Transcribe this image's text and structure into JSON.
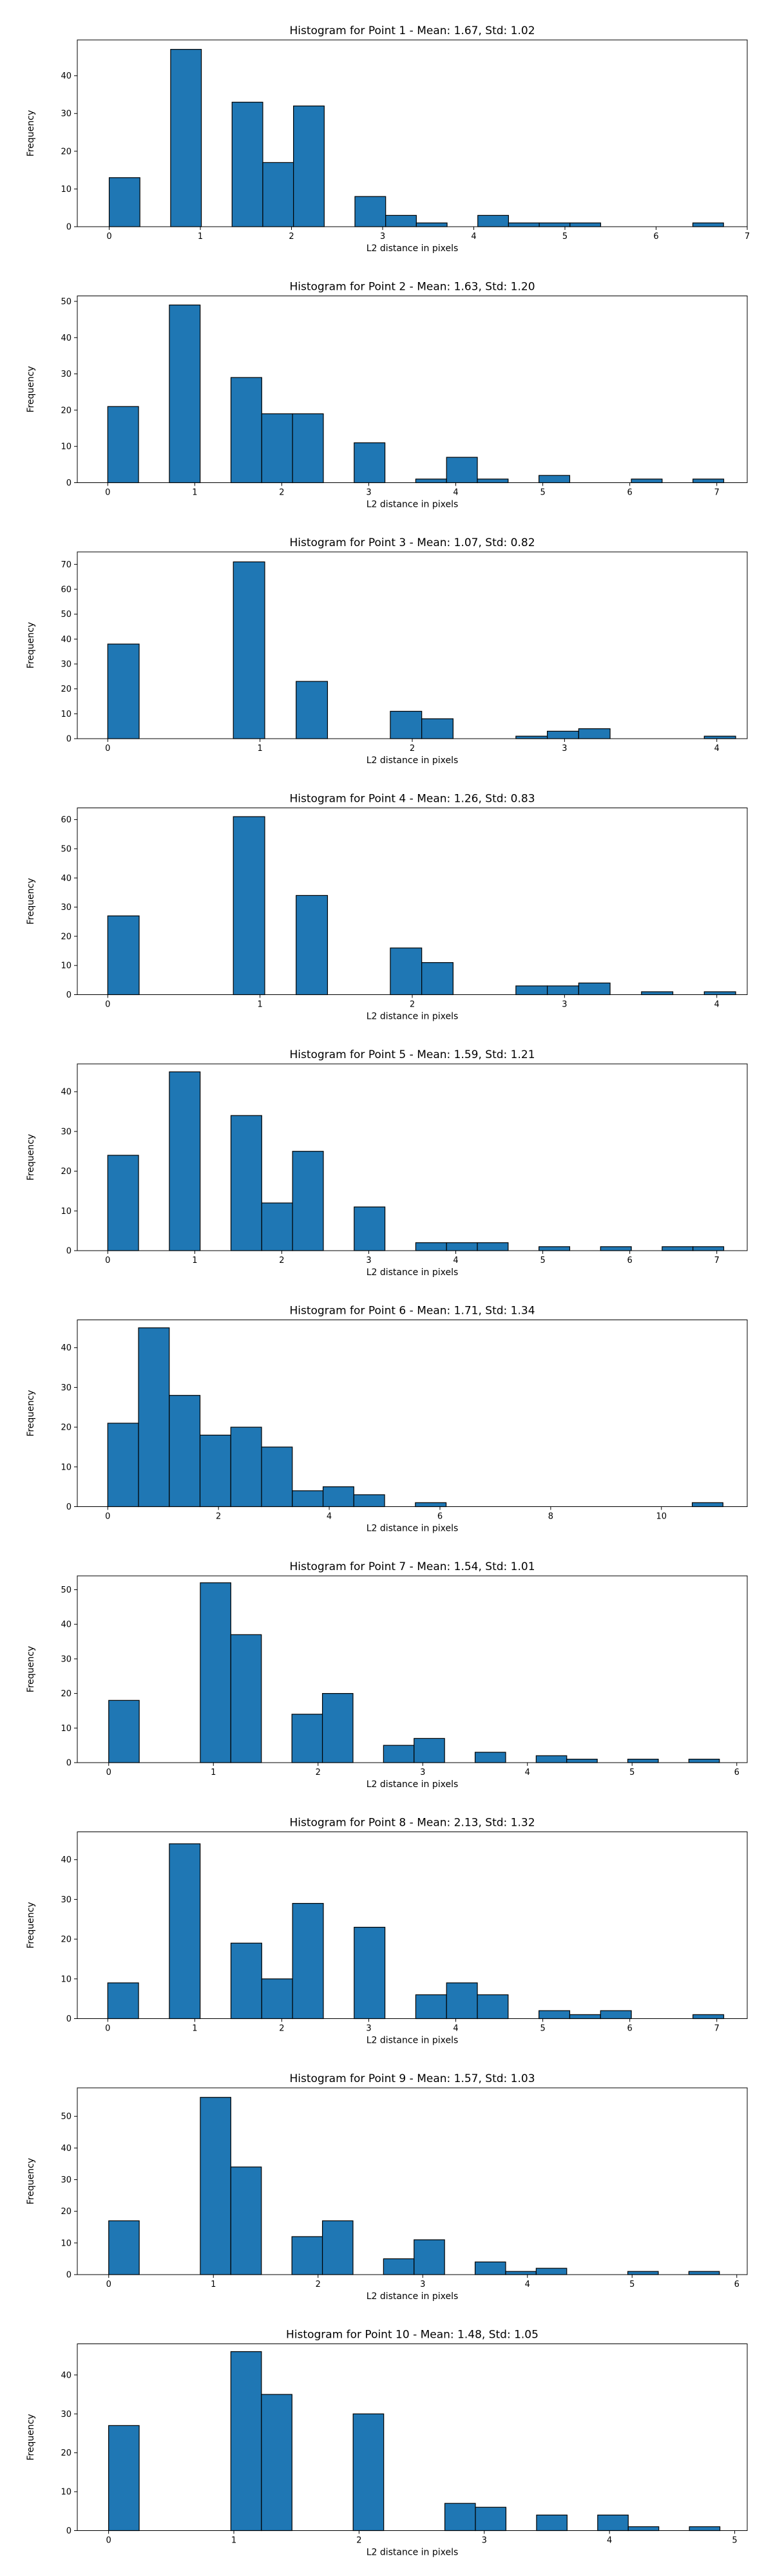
{
  "chart_data": [
    {
      "type": "bar",
      "title": "Histogram for Point 1 - Mean: 1.67, Std: 1.02",
      "xlabel": "L2 distance in pixels",
      "ylabel": "Frequency",
      "xlim": [
        -0.35,
        7.0
      ],
      "ylim": [
        0,
        49.5
      ],
      "xticks": [
        0,
        1,
        2,
        3,
        4,
        5,
        6,
        7
      ],
      "yticks": [
        0,
        10,
        20,
        30,
        40
      ],
      "bin_start": 0,
      "bin_width": 0.337,
      "values": [
        13,
        0,
        47,
        0,
        33,
        17,
        32,
        0,
        8,
        3,
        1,
        0,
        3,
        1,
        1,
        1,
        0,
        0,
        0,
        1
      ],
      "grid": false,
      "color": "#1f77b4"
    },
    {
      "type": "bar",
      "title": "Histogram for Point 2 - Mean: 1.63, Std: 1.20",
      "xlabel": "L2 distance in pixels",
      "ylabel": "Frequency",
      "xlim": [
        -0.35,
        7.35
      ],
      "ylim": [
        0,
        51.5
      ],
      "xticks": [
        0,
        1,
        2,
        3,
        4,
        5,
        6,
        7
      ],
      "yticks": [
        0,
        10,
        20,
        30,
        40,
        50
      ],
      "bin_start": 0,
      "bin_width": 0.354,
      "values": [
        21,
        0,
        49,
        0,
        29,
        19,
        19,
        0,
        11,
        0,
        1,
        7,
        1,
        0,
        2,
        0,
        0,
        1,
        0,
        1
      ],
      "grid": false,
      "color": "#1f77b4"
    },
    {
      "type": "bar",
      "title": "Histogram for Point 3 - Mean: 1.07, Std: 0.82",
      "xlabel": "L2 distance in pixels",
      "ylabel": "Frequency",
      "xlim": [
        -0.2,
        4.2
      ],
      "ylim": [
        0,
        75
      ],
      "xticks": [
        0,
        1,
        2,
        3,
        4
      ],
      "yticks": [
        0,
        10,
        20,
        30,
        40,
        50,
        60,
        70
      ],
      "bin_start": 0,
      "bin_width": 0.2062,
      "values": [
        38,
        0,
        0,
        0,
        71,
        0,
        23,
        0,
        0,
        11,
        8,
        0,
        0,
        1,
        3,
        4,
        0,
        0,
        0,
        1
      ],
      "grid": false,
      "color": "#1f77b4"
    },
    {
      "type": "bar",
      "title": "Histogram for Point 4 - Mean: 1.26, Std: 0.83",
      "xlabel": "L2 distance in pixels",
      "ylabel": "Frequency",
      "xlim": [
        -0.2,
        4.2
      ],
      "ylim": [
        0,
        64
      ],
      "xticks": [
        0,
        1,
        2,
        3,
        4
      ],
      "yticks": [
        0,
        10,
        20,
        30,
        40,
        50,
        60
      ],
      "bin_start": 0,
      "bin_width": 0.2062,
      "values": [
        27,
        0,
        0,
        0,
        61,
        0,
        34,
        0,
        0,
        16,
        11,
        0,
        0,
        3,
        3,
        4,
        0,
        1,
        0,
        1
      ],
      "grid": false,
      "color": "#1f77b4"
    },
    {
      "type": "bar",
      "title": "Histogram for Point 5 - Mean: 1.59, Std: 1.21",
      "xlabel": "L2 distance in pixels",
      "ylabel": "Frequency",
      "xlim": [
        -0.35,
        7.35
      ],
      "ylim": [
        0,
        47
      ],
      "xticks": [
        0,
        1,
        2,
        3,
        4,
        5,
        6,
        7
      ],
      "yticks": [
        0,
        10,
        20,
        30,
        40
      ],
      "bin_start": 0,
      "bin_width": 0.354,
      "values": [
        24,
        0,
        45,
        0,
        34,
        12,
        25,
        0,
        11,
        0,
        2,
        2,
        2,
        0,
        1,
        0,
        1,
        0,
        1,
        1
      ],
      "grid": false,
      "color": "#1f77b4"
    },
    {
      "type": "bar",
      "title": "Histogram for Point 6 - Mean: 1.71, Std: 1.34",
      "xlabel": "L2 distance in pixels",
      "ylabel": "Frequency",
      "xlim": [
        -0.55,
        11.55
      ],
      "ylim": [
        0,
        47
      ],
      "xticks": [
        0,
        2,
        4,
        6,
        8,
        10
      ],
      "yticks": [
        0,
        10,
        20,
        30,
        40
      ],
      "bin_start": 0,
      "bin_width": 0.5556,
      "values": [
        21,
        45,
        28,
        18,
        20,
        15,
        4,
        5,
        3,
        0,
        1,
        0,
        0,
        0,
        0,
        0,
        0,
        0,
        0,
        1
      ],
      "grid": false,
      "color": "#1f77b4"
    },
    {
      "type": "bar",
      "title": "Histogram for Point 7 - Mean: 1.54, Std: 1.01",
      "xlabel": "L2 distance in pixels",
      "ylabel": "Frequency",
      "xlim": [
        -0.3,
        6.1
      ],
      "ylim": [
        0,
        54
      ],
      "xticks": [
        0,
        1,
        2,
        3,
        4,
        5,
        6
      ],
      "yticks": [
        0,
        10,
        20,
        30,
        40,
        50
      ],
      "bin_start": 0,
      "bin_width": 0.2917,
      "values": [
        18,
        0,
        0,
        52,
        37,
        0,
        14,
        20,
        0,
        5,
        7,
        0,
        3,
        0,
        2,
        1,
        0,
        1,
        0,
        1
      ],
      "grid": false,
      "color": "#1f77b4"
    },
    {
      "type": "bar",
      "title": "Histogram for Point 8 - Mean: 2.13, Std: 1.32",
      "xlabel": "L2 distance in pixels",
      "ylabel": "Frequency",
      "xlim": [
        -0.35,
        7.35
      ],
      "ylim": [
        0,
        47
      ],
      "xticks": [
        0,
        1,
        2,
        3,
        4,
        5,
        6,
        7
      ],
      "yticks": [
        0,
        10,
        20,
        30,
        40
      ],
      "bin_start": 0,
      "bin_width": 0.354,
      "values": [
        9,
        0,
        44,
        0,
        19,
        10,
        29,
        0,
        23,
        0,
        6,
        9,
        6,
        0,
        2,
        1,
        2,
        0,
        0,
        1
      ],
      "grid": false,
      "color": "#1f77b4"
    },
    {
      "type": "bar",
      "title": "Histogram for Point 9 - Mean: 1.57, Std: 1.03",
      "xlabel": "L2 distance in pixels",
      "ylabel": "Frequency",
      "xlim": [
        -0.3,
        6.1
      ],
      "ylim": [
        0,
        59
      ],
      "xticks": [
        0,
        1,
        2,
        3,
        4,
        5,
        6
      ],
      "yticks": [
        0,
        10,
        20,
        30,
        40,
        50
      ],
      "bin_start": 0,
      "bin_width": 0.2917,
      "values": [
        17,
        0,
        0,
        56,
        34,
        0,
        12,
        17,
        0,
        5,
        11,
        0,
        4,
        1,
        2,
        0,
        0,
        1,
        0,
        1
      ],
      "grid": false,
      "color": "#1f77b4"
    },
    {
      "type": "bar",
      "title": "Histogram for Point 10 - Mean: 1.48, Std: 1.05",
      "xlabel": "L2 distance in pixels",
      "ylabel": "Frequency",
      "xlim": [
        -0.25,
        5.1
      ],
      "ylim": [
        0,
        48
      ],
      "xticks": [
        0,
        1,
        2,
        3,
        4,
        5
      ],
      "yticks": [
        0,
        10,
        20,
        30,
        40
      ],
      "bin_start": 0,
      "bin_width": 0.2441,
      "values": [
        27,
        0,
        0,
        0,
        46,
        35,
        0,
        0,
        30,
        0,
        0,
        7,
        6,
        0,
        4,
        0,
        4,
        1,
        0,
        1
      ],
      "grid": false,
      "color": "#1f77b4"
    }
  ]
}
